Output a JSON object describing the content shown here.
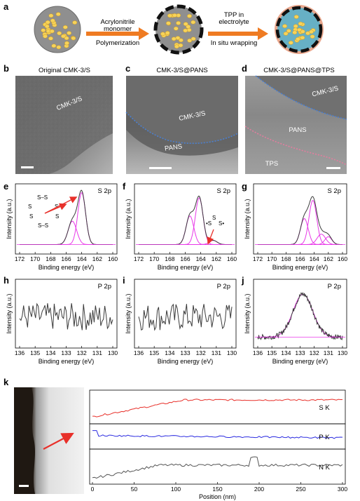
{
  "panel_a": {
    "letter": "a",
    "step1_top": "Acrylonitrile",
    "step1_top2": "monomer",
    "step1_bottom": "Polymerization",
    "step2_top": "TPP in",
    "step2_top2": "electrolyte",
    "step2_bottom": "In situ wrapping"
  },
  "tem": [
    {
      "letter": "b",
      "title": "Original CMK-3/S",
      "labels": [
        "CMK-3/S"
      ]
    },
    {
      "letter": "c",
      "title": "CMK-3/S@PANS",
      "labels": [
        "CMK-3/S",
        "PANS"
      ]
    },
    {
      "letter": "d",
      "title": "CMK-3/S@PANS@TPS",
      "labels": [
        "CMK-3/S",
        "PANS",
        "TPS"
      ]
    }
  ],
  "colors": {
    "magenta": "#e838e8",
    "dark": "#3a3a3a",
    "red": "#e8302a",
    "blue": "#2a2ae0",
    "arrow": "#ef7b22",
    "blue_dots": "#4a7fd0",
    "pink_dots": "#e37d9e"
  },
  "xps_common": {
    "ylabel": "Intensity (a.u.)",
    "xlabel": "Binding energy (eV)"
  },
  "chart_data": [
    {
      "type": "line",
      "panel": "e",
      "tag": "S 2p",
      "x_ticks": [
        "172",
        "170",
        "168",
        "166",
        "164",
        "162",
        "160"
      ],
      "xlim": [
        172,
        160
      ],
      "series": [
        {
          "peaks": [
            [
              165.2,
              0.45,
              0.55
            ],
            [
              164.0,
              1.0,
              0.5
            ]
          ],
          "baseline": 0.02
        }
      ]
    },
    {
      "type": "line",
      "panel": "f",
      "tag": "S 2p",
      "x_ticks": [
        "172",
        "170",
        "168",
        "166",
        "164",
        "162",
        "160"
      ],
      "xlim": [
        172,
        160
      ],
      "series": [
        {
          "peaks": [
            [
              165.4,
              0.55,
              0.5
            ],
            [
              164.2,
              0.9,
              0.5
            ],
            [
              162.4,
              0.08,
              0.5
            ]
          ],
          "baseline": 0.02
        }
      ]
    },
    {
      "type": "line",
      "panel": "g",
      "tag": "S 2p",
      "x_ticks": [
        "172",
        "170",
        "168",
        "166",
        "164",
        "162",
        "160"
      ],
      "xlim": [
        172,
        160
      ],
      "series": [
        {
          "peaks": [
            [
              165.4,
              0.5,
              0.55
            ],
            [
              164.2,
              0.85,
              0.55
            ],
            [
              163.0,
              0.2,
              0.6
            ],
            [
              162.0,
              0.15,
              0.5
            ]
          ],
          "baseline": 0.02
        }
      ]
    },
    {
      "type": "line",
      "panel": "h",
      "tag": "P 2p",
      "x_ticks": [
        "136",
        "135",
        "134",
        "133",
        "132",
        "131",
        "130"
      ],
      "xlim": [
        136,
        130
      ]
    },
    {
      "type": "line",
      "panel": "i",
      "tag": "P 2p",
      "x_ticks": [
        "136",
        "135",
        "134",
        "133",
        "132",
        "131",
        "130"
      ],
      "xlim": [
        136,
        130
      ]
    },
    {
      "type": "line",
      "panel": "j",
      "tag": "P 2p",
      "x_ticks": [
        "136",
        "135",
        "134",
        "133",
        "132",
        "131",
        "130"
      ],
      "xlim": [
        136,
        130
      ],
      "series": [
        {
          "peaks": [
            [
              132.8,
              0.85,
              0.7
            ]
          ],
          "baseline": 0.05
        }
      ]
    },
    {
      "type": "line",
      "panel": "k",
      "xlabel": "Position (nm)",
      "x_ticks": [
        "0",
        "50",
        "100",
        "150",
        "200",
        "250",
        "300"
      ],
      "xlim": [
        0,
        300
      ],
      "series": [
        {
          "name": "S K"
        },
        {
          "name": "P K"
        },
        {
          "name": "N K"
        }
      ]
    }
  ],
  "panel_k": {
    "letter": "k",
    "labels": [
      "S K",
      "P K",
      "N K"
    ]
  }
}
